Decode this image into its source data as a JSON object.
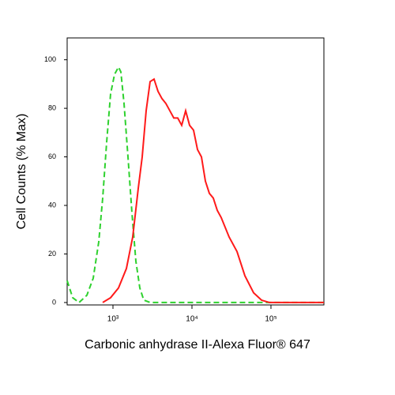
{
  "chart_data": {
    "type": "line",
    "xlabel": "Carbonic anhydrase II-Alexa Fluor® 647",
    "ylabel": "Cell Counts (% Max)",
    "xscale": "log",
    "xlim": [
      263,
      468000
    ],
    "ylim": [
      -1,
      109
    ],
    "xticks": [
      {
        "value": 1000,
        "label": "10³"
      },
      {
        "value": 10000,
        "label": "10⁴"
      },
      {
        "value": 100000,
        "label": "10⁵"
      }
    ],
    "yticks": [
      0,
      20,
      40,
      60,
      80,
      100
    ],
    "series": [
      {
        "color": "#2ed12e",
        "dashed": true,
        "x": [
          263,
          309,
          372,
          468,
          562,
          661,
          741,
          832,
          933,
          1047,
          1175,
          1259,
          1380,
          1549,
          1738,
          1950,
          2188,
          2455,
          2951,
          11749,
          468000
        ],
        "values": [
          9,
          2,
          0,
          3,
          10,
          25,
          43,
          66,
          86,
          94,
          97,
          95,
          82,
          60,
          37,
          17,
          6,
          1,
          0,
          0,
          0
        ]
      },
      {
        "color": "#ff1a1a",
        "dashed": false,
        "x": [
          741,
          933,
          1175,
          1479,
          1778,
          2089,
          2344,
          2630,
          2951,
          3311,
          3715,
          4169,
          4677,
          5248,
          5888,
          6607,
          7413,
          8318,
          9333,
          10471,
          11749,
          13183,
          14791,
          16596,
          18621,
          20893,
          23442,
          29512,
          37154,
          46774,
          60256,
          75858,
          95499,
          468000
        ],
        "values": [
          0,
          2,
          6,
          14,
          27,
          47,
          60,
          79,
          91,
          92,
          87,
          84,
          82,
          79,
          76,
          76,
          73,
          79,
          73,
          71,
          63,
          60,
          50,
          45,
          43,
          38,
          35,
          27,
          21,
          11,
          4,
          1,
          0,
          0
        ]
      }
    ]
  }
}
